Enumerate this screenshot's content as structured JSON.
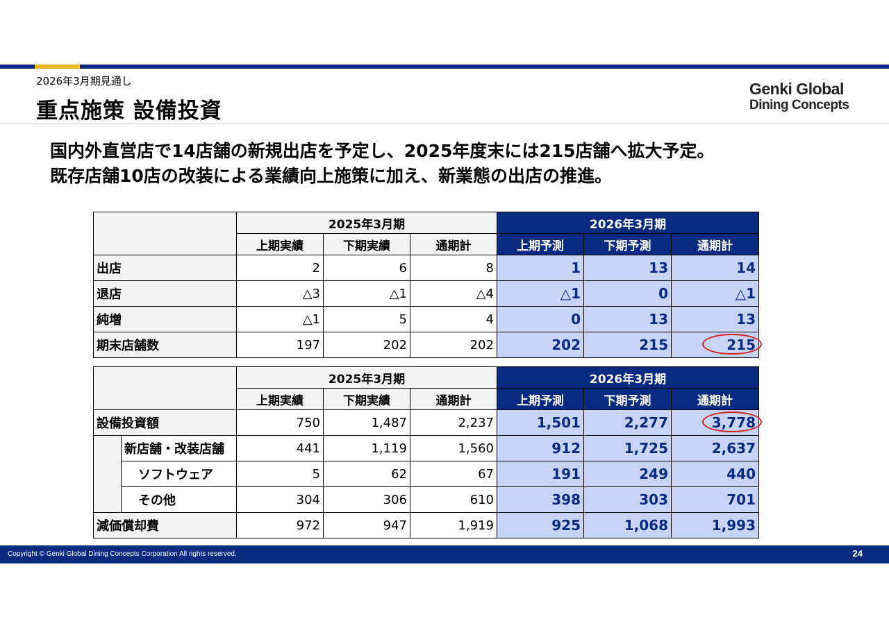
{
  "header": {
    "kicker": "2026年3月期見通し",
    "title": "重点施策 設備投資",
    "logo_line1": "Genki Global",
    "logo_line2": "Dining Concepts"
  },
  "lead": {
    "line1": "国内外直営店で14店舗の新規出店を予定し、2025年度末には215店舗へ拡大予定。",
    "line2": "既存店舗10店の改装による業績向上施策に加え、新業態の出店の推進。"
  },
  "colors": {
    "brand_navy": "#0a2a82",
    "accent_yellow": "#e8b41a",
    "forecast_cell": "#c7d4f5",
    "highlight_red": "#d42020"
  },
  "stores_table": {
    "period_actual": "2025年3月期",
    "period_forecast": "2026年3月期",
    "columns": [
      "上期実績",
      "下期実績",
      "通期計",
      "上期予測",
      "下期予測",
      "通期計"
    ],
    "rows": [
      {
        "label": "出店",
        "values": [
          "2",
          "6",
          "8",
          "1",
          "13",
          "14"
        ]
      },
      {
        "label": "退店",
        "values": [
          "△3",
          "△1",
          "△4",
          "△1",
          "0",
          "△1"
        ]
      },
      {
        "label": "純増",
        "values": [
          "△1",
          "5",
          "4",
          "0",
          "13",
          "13"
        ]
      },
      {
        "label": "期末店舗数",
        "values": [
          "197",
          "202",
          "202",
          "202",
          "215",
          "215"
        ]
      }
    ],
    "highlighted": "215"
  },
  "capex_table": {
    "period_actual": "2025年3月期",
    "period_forecast": "2026年3月期",
    "columns": [
      "上期実績",
      "下期実績",
      "通期計",
      "上期予測",
      "下期予測",
      "通期計"
    ],
    "rows": [
      {
        "label": "設備投資額",
        "values": [
          "750",
          "1,487",
          "2,237",
          "1,501",
          "2,277",
          "3,778"
        ]
      },
      {
        "label": "新店舗・改装店舗",
        "values": [
          "441",
          "1,119",
          "1,560",
          "912",
          "1,725",
          "2,637"
        ]
      },
      {
        "label": "ソフトウェア",
        "values": [
          "5",
          "62",
          "67",
          "191",
          "249",
          "440"
        ]
      },
      {
        "label": "その他",
        "values": [
          "304",
          "306",
          "610",
          "398",
          "303",
          "701"
        ]
      },
      {
        "label": "減価償却費",
        "values": [
          "972",
          "947",
          "1,919",
          "925",
          "1,068",
          "1,993"
        ]
      }
    ],
    "highlighted": "3,778"
  },
  "footer": {
    "copyright": "Copyright © Genki Global Dining Concepts Corporation All rights reserved.",
    "page_number": "24"
  }
}
